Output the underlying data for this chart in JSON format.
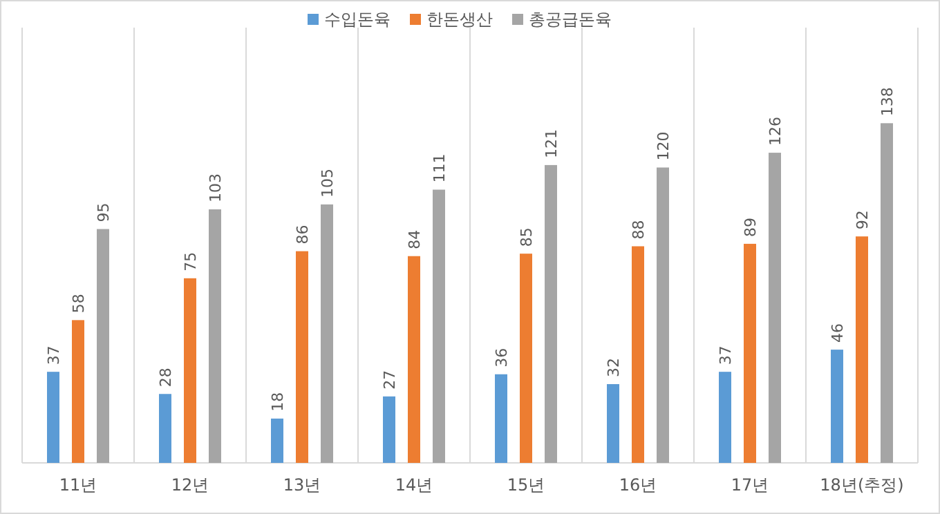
{
  "chart_data": {
    "type": "bar",
    "categories": [
      "11년",
      "12년",
      "13년",
      "14년",
      "15년",
      "16년",
      "17년",
      "18년(추정)"
    ],
    "series": [
      {
        "name": "수입돈육",
        "color": "#5b9bd5",
        "values": [
          37,
          28,
          18,
          27,
          36,
          32,
          37,
          46
        ]
      },
      {
        "name": "한돈생산",
        "color": "#ed7d31",
        "values": [
          58,
          75,
          86,
          84,
          85,
          88,
          89,
          92
        ]
      },
      {
        "name": "총공급돈육",
        "color": "#a5a5a5",
        "values": [
          95,
          103,
          105,
          111,
          121,
          120,
          126,
          138
        ]
      }
    ],
    "data_labels": true,
    "legend": "top",
    "grid": "x"
  }
}
